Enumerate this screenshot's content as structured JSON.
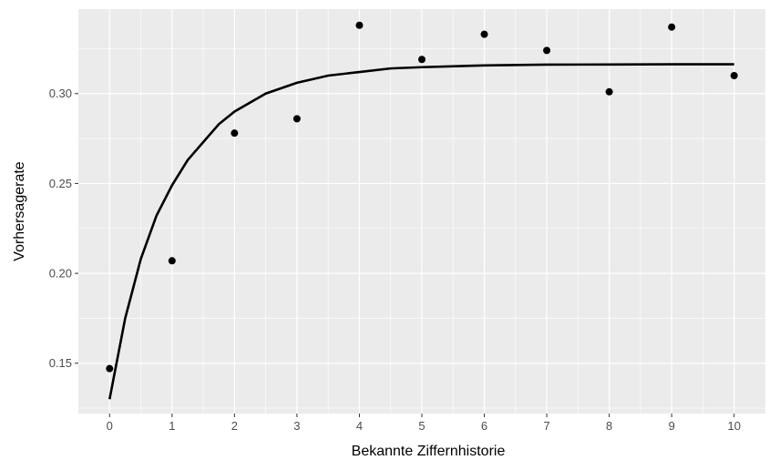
{
  "chart_data": {
    "type": "scatter",
    "title": "",
    "xlabel": "Bekannte Ziffernhistorie",
    "ylabel": "Vorhersagerate",
    "xlim": [
      -0.5,
      10.5
    ],
    "ylim": [
      0.122,
      0.347
    ],
    "x_ticks": [
      0,
      1,
      2,
      3,
      4,
      5,
      6,
      7,
      8,
      9,
      10
    ],
    "x_tick_labels": [
      "0",
      "1",
      "2",
      "3",
      "4",
      "5",
      "6",
      "7",
      "8",
      "9",
      "10"
    ],
    "y_ticks": [
      0.15,
      0.2,
      0.25,
      0.3
    ],
    "y_tick_labels": [
      "0.15",
      "0.20",
      "0.25",
      "0.30"
    ],
    "grid": true,
    "legend": "none",
    "colors": {
      "panel_background": "#ebebeb",
      "grid": "#ffffff",
      "points": "#000000",
      "fit_line": "#000000",
      "tick_text": "#4d4d4d"
    },
    "points": {
      "x": [
        0,
        1,
        2,
        3,
        4,
        5,
        6,
        7,
        8,
        9,
        10
      ],
      "y": [
        0.147,
        0.207,
        0.278,
        0.286,
        0.338,
        0.319,
        0.333,
        0.324,
        0.301,
        0.337,
        0.31
      ]
    },
    "fit_curve": {
      "x": [
        0,
        0.25,
        0.5,
        0.75,
        1,
        1.25,
        1.5,
        1.75,
        2,
        2.5,
        3,
        3.5,
        4,
        4.5,
        5,
        6,
        7,
        8,
        9,
        10
      ],
      "y": [
        0.13,
        0.175,
        0.208,
        0.232,
        0.249,
        0.263,
        0.273,
        0.283,
        0.29,
        0.3,
        0.306,
        0.31,
        0.312,
        0.314,
        0.3147,
        0.3157,
        0.3161,
        0.3162,
        0.3163,
        0.3163
      ]
    }
  }
}
